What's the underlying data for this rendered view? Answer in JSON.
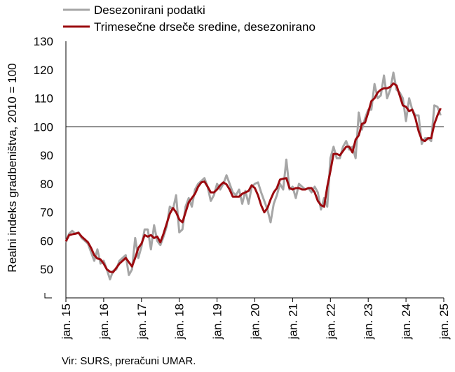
{
  "chart_data": {
    "type": "line",
    "ylabel": "Realni indeks gradbeništva, 2010 = 100",
    "ylim": [
      40,
      130
    ],
    "yticks": [
      50,
      60,
      70,
      80,
      90,
      100,
      110,
      120,
      130
    ],
    "x_start": "2015-01",
    "xticks": [
      "jan. 15",
      "jan. 16",
      "jan. 17",
      "jan. 18",
      "jan. 19",
      "jan. 20",
      "jan. 21",
      "jan. 22",
      "jan. 23",
      "jan. 24",
      "jan. 25"
    ],
    "reference_line": 100,
    "legend_position": "top-left",
    "series": [
      {
        "name": "Desezonirani podatki",
        "color": "#a6a6a6",
        "values": [
          59.5,
          62.5,
          63.5,
          62.5,
          63.0,
          61.0,
          60.0,
          59.0,
          56.0,
          53.0,
          57.0,
          52.0,
          53.0,
          50.0,
          46.5,
          49.5,
          50.0,
          53.0,
          54.0,
          55.0,
          48.0,
          50.0,
          61.0,
          54.0,
          58.0,
          64.0,
          64.0,
          57.0,
          65.5,
          60.0,
          58.5,
          61.5,
          65.0,
          72.0,
          71.0,
          76.0,
          63.0,
          64.0,
          72.0,
          75.0,
          72.0,
          78.0,
          80.0,
          81.0,
          82.0,
          79.0,
          74.0,
          76.0,
          80.0,
          78.0,
          80.0,
          83.0,
          80.0,
          77.0,
          76.0,
          78.0,
          73.0,
          77.5,
          73.0,
          79.0,
          80.0,
          80.5,
          77.0,
          74.0,
          71.0,
          66.5,
          73.0,
          76.0,
          80.0,
          78.0,
          88.5,
          78.0,
          79.0,
          75.0,
          80.0,
          79.0,
          78.0,
          78.5,
          77.0,
          79.0,
          77.0,
          71.0,
          75.0,
          72.0,
          89.0,
          93.0,
          89.0,
          89.0,
          93.0,
          95.0,
          92.0,
          93.0,
          89.0,
          105.0,
          99.0,
          103.0,
          106.0,
          106.0,
          115.0,
          110.0,
          111.0,
          118.0,
          110.0,
          113.0,
          119.0,
          113.0,
          112.0,
          110.0,
          102.0,
          110.0,
          106.0,
          104.0,
          104.0,
          94.0,
          96.0,
          96.0,
          95.0,
          107.5,
          107.0,
          104.0
        ]
      },
      {
        "name": "Trimesečne drseče sredine, desezonirano",
        "color": "#9b0a0f",
        "values": [
          59.8,
          62.0,
          62.3,
          62.5,
          62.8,
          61.5,
          60.5,
          59.5,
          57.5,
          55.0,
          53.8,
          53.5,
          52.0,
          50.0,
          49.2,
          49.0,
          50.5,
          52.0,
          53.0,
          54.0,
          52.5,
          51.0,
          54.0,
          57.5,
          59.0,
          62.0,
          61.5,
          62.0,
          61.0,
          61.5,
          59.5,
          62.5,
          66.0,
          69.5,
          71.5,
          70.0,
          67.5,
          66.5,
          70.0,
          73.5,
          75.0,
          76.5,
          79.0,
          80.5,
          80.8,
          79.0,
          77.0,
          77.0,
          78.0,
          79.5,
          80.5,
          79.8,
          78.0,
          75.5,
          75.5,
          75.5,
          76.5,
          77.0,
          77.5,
          79.5,
          78.5,
          76.0,
          72.5,
          70.0,
          71.5,
          74.5,
          77.0,
          78.5,
          81.5,
          81.8,
          82.0,
          78.5,
          78.0,
          78.5,
          78.5,
          78.0,
          78.0,
          78.5,
          78.5,
          77.0,
          74.0,
          72.5,
          72.0,
          79.0,
          84.5,
          90.5,
          90.5,
          90.0,
          91.5,
          93.0,
          93.0,
          91.0,
          95.5,
          97.0,
          101.0,
          101.5,
          105.0,
          109.0,
          110.0,
          112.0,
          113.0,
          113.5,
          113.5,
          114.0,
          115.2,
          114.5,
          111.0,
          107.5,
          107.0,
          105.5,
          106.0,
          103.0,
          98.5,
          95.5,
          95.0,
          96.0,
          96.0,
          101.0,
          104.0,
          106.5
        ]
      }
    ]
  },
  "source_text": "Vir: SURS, preračuni UMAR."
}
